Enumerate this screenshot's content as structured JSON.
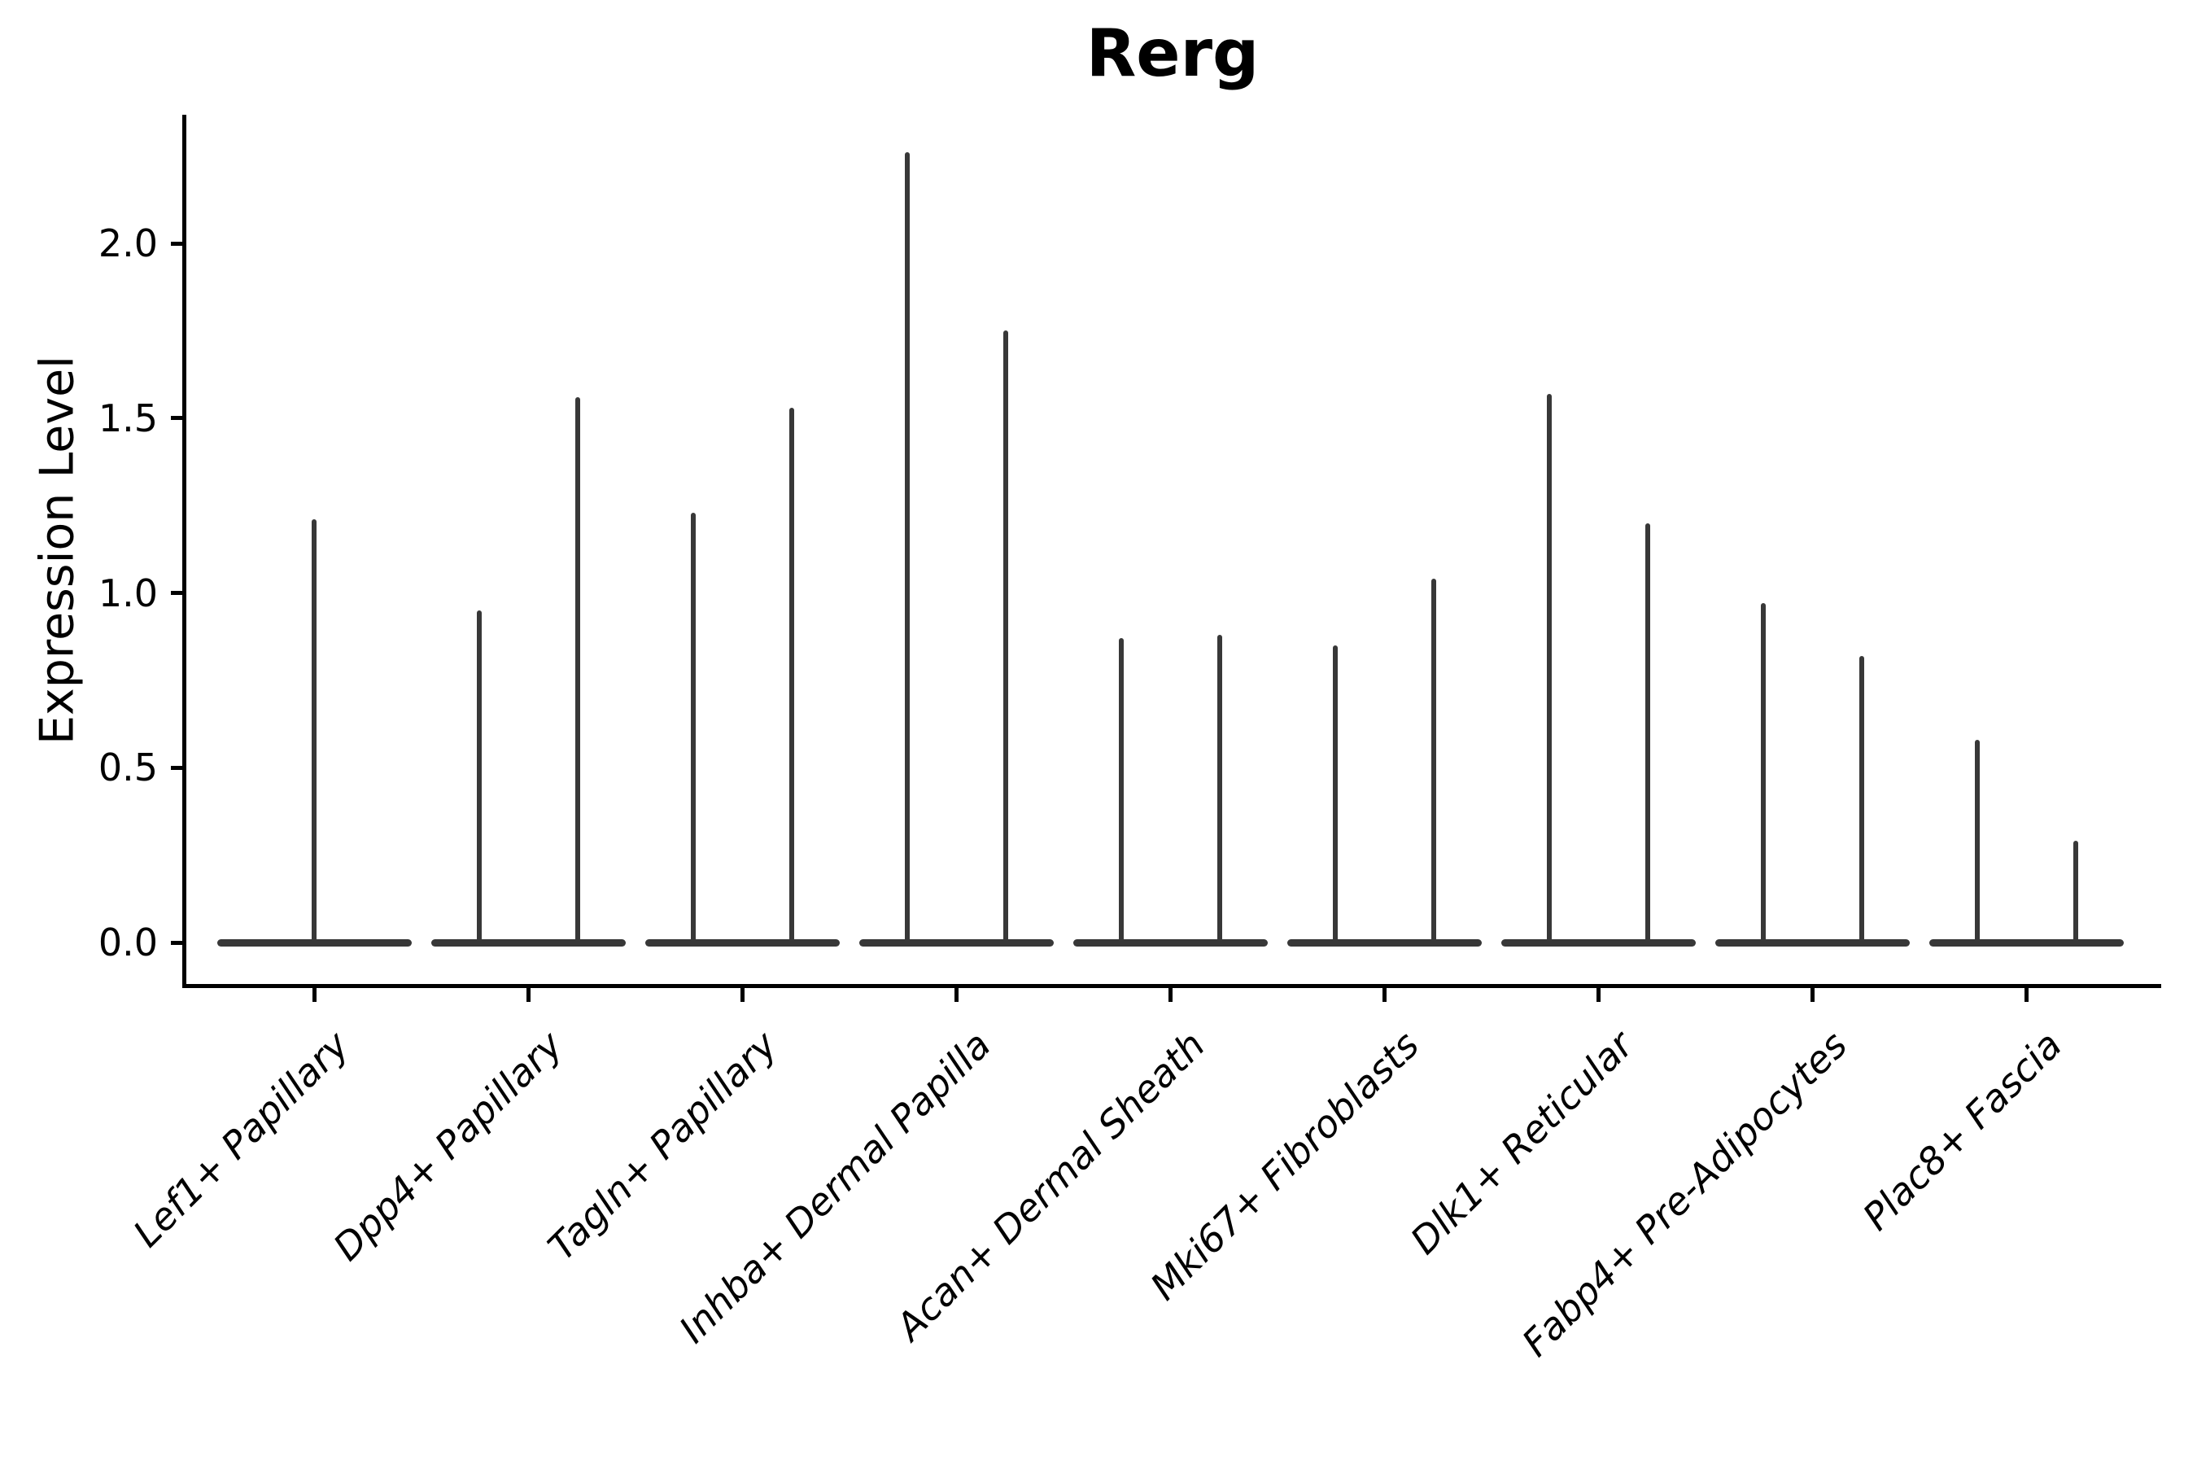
{
  "figure": {
    "title": "Rerg",
    "y_axis_label": "Expression Level"
  },
  "chart_data": {
    "type": "violin",
    "title": "Rerg",
    "xlabel": "",
    "ylabel": "Expression Level",
    "ylim": [
      -0.12,
      2.38
    ],
    "yticks": [
      {
        "label": "0.0",
        "value": 0.0
      },
      {
        "label": "0.5",
        "value": 0.5
      },
      {
        "label": "1.0",
        "value": 1.0
      },
      {
        "label": "1.5",
        "value": 1.5
      },
      {
        "label": "2.0",
        "value": 2.0
      }
    ],
    "grid": false,
    "legend": "none",
    "baseline_value": 0.0,
    "violin_style": "each violin's density mass sits at 0 forming a flat horizontal base, with a thin vertical spike rising to that group's maximum expression",
    "categories": [
      "Lef1+ Papillary",
      "Dpp4+ Papillary",
      "Tagln+ Papillary",
      "Inhba+ Dermal Papilla",
      "Acan+ Dermal Sheath",
      "Mki67+ Fibroblasts",
      "Dlk1+ Reticular",
      "Fabp4+ Pre-Adipocytes",
      "Plac8+ Fascia"
    ],
    "series": [
      {
        "category": "Lef1+ Papillary",
        "group_maxima": [
          1.21
        ]
      },
      {
        "category": "Dpp4+ Papillary",
        "group_maxima": [
          0.95,
          1.56
        ]
      },
      {
        "category": "Tagln+ Papillary",
        "group_maxima": [
          1.23,
          1.53
        ]
      },
      {
        "category": "Inhba+ Dermal Papilla",
        "group_maxima": [
          2.26,
          1.75
        ]
      },
      {
        "category": "Acan+ Dermal Sheath",
        "group_maxima": [
          0.87,
          0.88
        ]
      },
      {
        "category": "Mki67+ Fibroblasts",
        "group_maxima": [
          0.85,
          1.04
        ]
      },
      {
        "category": "Dlk1+ Reticular",
        "group_maxima": [
          1.57,
          1.2
        ]
      },
      {
        "category": "Fabp4+ Pre-Adipocytes",
        "group_maxima": [
          0.97,
          0.82
        ]
      },
      {
        "category": "Plac8+ Fascia",
        "group_maxima": [
          0.58,
          0.29
        ]
      }
    ]
  },
  "style": {
    "violin_color": "#383838",
    "axis_color": "#000000",
    "text_color": "#000000",
    "background_color": "#ffffff"
  }
}
